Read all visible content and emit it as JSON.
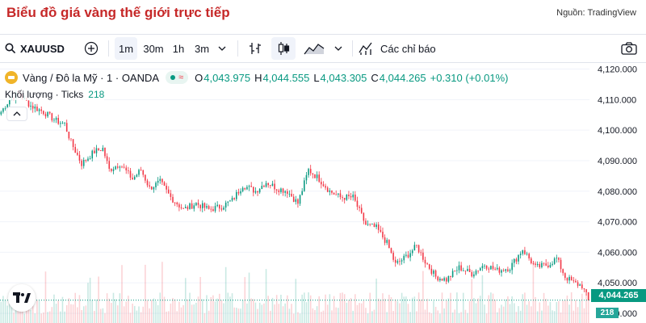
{
  "header": {
    "title": "Biểu đồ giá vàng thế giới trực tiếp",
    "source": "Nguồn: TradingView"
  },
  "toolbar": {
    "symbol": "XAUUSD",
    "intervals": [
      "1m",
      "30m",
      "1h",
      "3m"
    ],
    "active_interval": "1m",
    "indicators_label": "Các chỉ báo"
  },
  "legend": {
    "name": "Vàng / Đô la Mỹ · 1 · OANDA",
    "status_symbol": "≈",
    "open_k": "O",
    "open": "4,043.975",
    "high_k": "H",
    "high": "4,044.555",
    "low_k": "L",
    "low": "4,043.305",
    "close_k": "C",
    "close": "4,044.265",
    "change": "+0.310 (+0.01%)"
  },
  "volume_legend": {
    "label": "Khối lượng · Ticks",
    "value": "218"
  },
  "price_axis": {
    "labels": [
      "4,120.000",
      "4,110.000",
      "4,100.000",
      "4,090.000",
      "4,080.000",
      "4,070.000",
      "4,060.000",
      "4,050.000",
      "4,040.000"
    ],
    "current_price": "4,044.265",
    "current_volume": "218"
  },
  "colors": {
    "up": "#089981",
    "down": "#f23645",
    "title": "#c62828"
  },
  "chart_data": {
    "type": "candlestick",
    "symbol": "XAUUSD",
    "interval": "1m",
    "ylim": [
      4040,
      4122
    ],
    "close_path": [
      {
        "i": 0,
        "y": 4106
      },
      {
        "i": 4,
        "y": 4110
      },
      {
        "i": 8,
        "y": 4112
      },
      {
        "i": 14,
        "y": 4108
      },
      {
        "i": 20,
        "y": 4106
      },
      {
        "i": 26,
        "y": 4103
      },
      {
        "i": 30,
        "y": 4102
      },
      {
        "i": 33,
        "y": 4096
      },
      {
        "i": 38,
        "y": 4089
      },
      {
        "i": 44,
        "y": 4093
      },
      {
        "i": 48,
        "y": 4094
      },
      {
        "i": 51,
        "y": 4087
      },
      {
        "i": 56,
        "y": 4089
      },
      {
        "i": 62,
        "y": 4084
      },
      {
        "i": 66,
        "y": 4087
      },
      {
        "i": 70,
        "y": 4081
      },
      {
        "i": 75,
        "y": 4083
      },
      {
        "i": 80,
        "y": 4078
      },
      {
        "i": 86,
        "y": 4074
      },
      {
        "i": 92,
        "y": 4076
      },
      {
        "i": 98,
        "y": 4074
      },
      {
        "i": 104,
        "y": 4075
      },
      {
        "i": 109,
        "y": 4077
      },
      {
        "i": 114,
        "y": 4082
      },
      {
        "i": 120,
        "y": 4080
      },
      {
        "i": 125,
        "y": 4083
      },
      {
        "i": 130,
        "y": 4081
      },
      {
        "i": 135,
        "y": 4080
      },
      {
        "i": 140,
        "y": 4076
      },
      {
        "i": 145,
        "y": 4087
      },
      {
        "i": 150,
        "y": 4084
      },
      {
        "i": 155,
        "y": 4080
      },
      {
        "i": 160,
        "y": 4078
      },
      {
        "i": 166,
        "y": 4078
      },
      {
        "i": 172,
        "y": 4069
      },
      {
        "i": 177,
        "y": 4068
      },
      {
        "i": 182,
        "y": 4063
      },
      {
        "i": 186,
        "y": 4056
      },
      {
        "i": 190,
        "y": 4058
      },
      {
        "i": 196,
        "y": 4062
      },
      {
        "i": 200,
        "y": 4057
      },
      {
        "i": 205,
        "y": 4052
      },
      {
        "i": 210,
        "y": 4051
      },
      {
        "i": 216,
        "y": 4055
      },
      {
        "i": 222,
        "y": 4053
      },
      {
        "i": 228,
        "y": 4056
      },
      {
        "i": 234,
        "y": 4054
      },
      {
        "i": 240,
        "y": 4055
      },
      {
        "i": 246,
        "y": 4061
      },
      {
        "i": 252,
        "y": 4055
      },
      {
        "i": 258,
        "y": 4056
      },
      {
        "i": 262,
        "y": 4058
      },
      {
        "i": 266,
        "y": 4052
      },
      {
        "i": 270,
        "y": 4050
      },
      {
        "i": 274,
        "y": 4049
      },
      {
        "i": 277,
        "y": 4044.3
      }
    ],
    "volume_ylim": [
      0,
      220
    ]
  }
}
